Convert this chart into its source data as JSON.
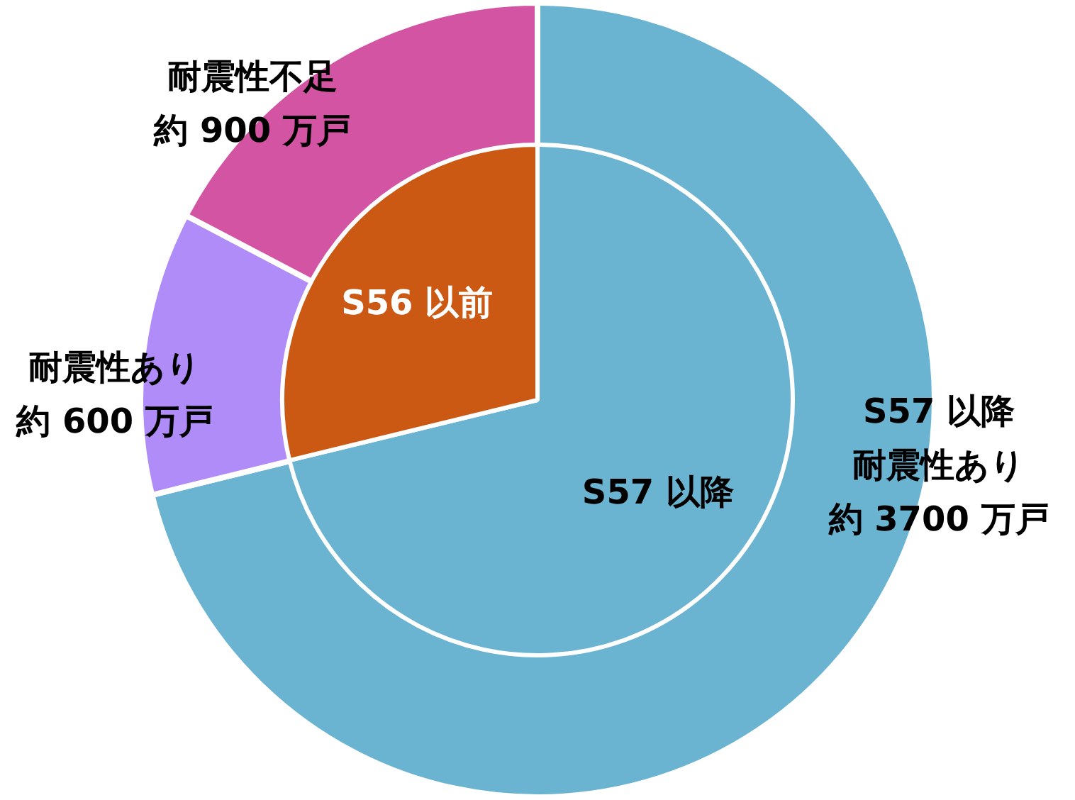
{
  "chart_data": [
    {
      "type": "pie",
      "categories": [
        "S57 以降",
        "S56 以前"
      ],
      "values": [
        71.2,
        28.8
      ],
      "colors": [
        "#6ab4d2",
        "#cb5914"
      ],
      "legend": false
    },
    {
      "type": "donut",
      "categories": [
        "S57 以降耐震性あり",
        "耐震性あり",
        "耐震性不足"
      ],
      "values": [
        3700,
        600,
        900
      ],
      "value_labels": [
        "約 3700 万戸",
        "約 600 万戸",
        "約 900 万戸"
      ],
      "colors": [
        "#6ab4d2",
        "#b08cf8",
        "#d354a2"
      ],
      "legend": false
    }
  ]
}
